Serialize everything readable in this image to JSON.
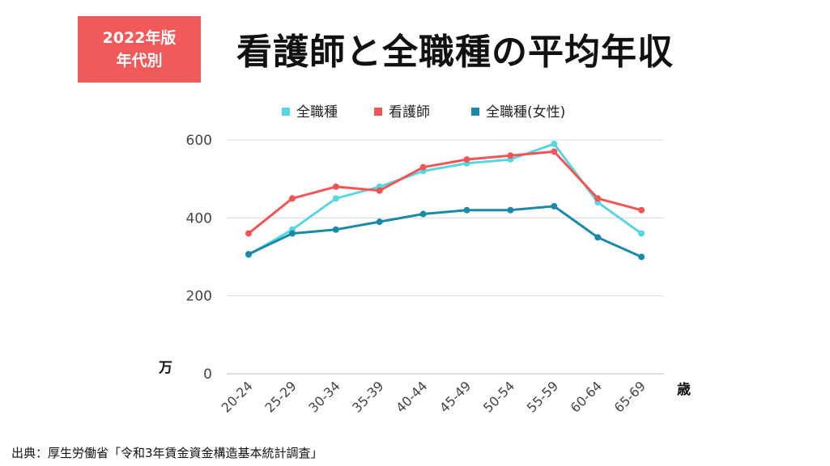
{
  "header": {
    "badge_line1": "2022年版",
    "badge_line2": "年代別",
    "title": "看護師と全職種の平均年収"
  },
  "footer": {
    "source": "出典：厚生労働省「令和3年賃金資金構造基本統計調査」"
  },
  "chart_data": {
    "type": "line",
    "title": "看護師と全職種の平均年収",
    "xlabel": "歳",
    "ylabel": "万",
    "categories": [
      "20-24",
      "25-29",
      "30-34",
      "35-39",
      "40-44",
      "45-49",
      "50-54",
      "55-59",
      "60-64",
      "65-69"
    ],
    "ylim": [
      0,
      600
    ],
    "yticks": [
      0,
      200,
      400,
      600
    ],
    "grid": true,
    "legend": "top-center",
    "series": [
      {
        "name": "全職種",
        "color": "#5ad6e0",
        "values": [
          305,
          370,
          450,
          480,
          520,
          540,
          550,
          590,
          440,
          360
        ]
      },
      {
        "name": "看護師",
        "color": "#f25555",
        "values": [
          360,
          450,
          480,
          470,
          530,
          550,
          560,
          570,
          450,
          420
        ]
      },
      {
        "name": "全職種(女性)",
        "color": "#1a8aa8",
        "values": [
          307,
          360,
          370,
          390,
          410,
          420,
          420,
          430,
          350,
          300
        ]
      }
    ]
  }
}
